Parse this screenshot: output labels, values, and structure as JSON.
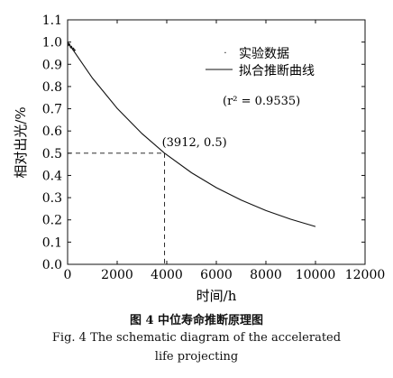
{
  "chart_data": {
    "type": "line",
    "xlabel": "时间/h",
    "ylabel": "相对出光/%",
    "xlim": [
      0,
      12000
    ],
    "ylim": [
      0.0,
      1.1
    ],
    "x_ticks": [
      0,
      2000,
      4000,
      6000,
      8000,
      10000,
      12000
    ],
    "y_ticks": [
      0.0,
      0.1,
      0.2,
      0.3,
      0.4,
      0.5,
      0.6,
      0.7,
      0.8,
      0.9,
      1.0,
      1.1
    ],
    "grid": false,
    "legend": {
      "position": "top-right",
      "entries": [
        "实验数据",
        "拟合推断曲线"
      ]
    },
    "annotations": {
      "r2": "(r² = 0.9535)",
      "point_label": "(3912, 0.5)",
      "point": {
        "x": 3912,
        "y": 0.5
      }
    },
    "series": [
      {
        "name": "拟合推断曲线",
        "x": [
          0,
          1000,
          2000,
          3000,
          3912,
          5000,
          6000,
          7000,
          8000,
          9000,
          10000
        ],
        "y": [
          1.0,
          0.838,
          0.702,
          0.588,
          0.5,
          0.412,
          0.345,
          0.289,
          0.242,
          0.203,
          0.17
        ]
      }
    ]
  },
  "caption": {
    "cn": "图 4   中位寿命推断原理图",
    "en_line1": "Fig. 4   The schematic diagram of the accelerated",
    "en_line2": "life projecting"
  }
}
